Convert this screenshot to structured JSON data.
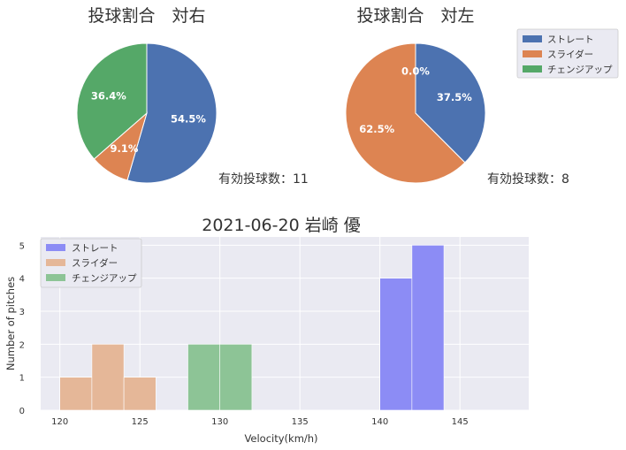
{
  "colors": {
    "straight": "#4c72b0",
    "slider": "#dd8452",
    "change": "#55a868",
    "hist_straight": "#8c8cf5",
    "hist_slider": "#e5b798",
    "hist_change": "#8dc496",
    "axes_bg": "#eaeaf2",
    "grid": "#ffffff",
    "text": "#333333"
  },
  "chart_data": [
    {
      "type": "pie",
      "title": "投球割合　対右",
      "labels": [
        "ストレート",
        "スライダー",
        "チェンジアップ"
      ],
      "values": [
        54.5,
        9.1,
        36.4
      ],
      "value_labels": [
        "54.5%",
        "9.1%",
        "36.4%"
      ],
      "annotation": "有効投球数：11"
    },
    {
      "type": "pie",
      "title": "投球割合　対左",
      "labels": [
        "ストレート",
        "スライダー",
        "チェンジアップ"
      ],
      "values": [
        37.5,
        62.5,
        0.0
      ],
      "value_labels": [
        "37.5%",
        "62.5%",
        "0.0%"
      ],
      "annotation": "有効投球数：8",
      "legend": {
        "placement": "upper-right",
        "entries": [
          "ストレート",
          "スライダー",
          "チェンジアップ"
        ]
      }
    },
    {
      "type": "histogram",
      "title": "2021-06-20 岩崎 優",
      "xlabel": "Velocity(km/h)",
      "ylabel": "Number of pitches",
      "xlim": [
        118.8,
        149.3
      ],
      "ylim": [
        0,
        5.25
      ],
      "xticks": [
        120,
        125,
        130,
        135,
        140,
        145
      ],
      "yticks": [
        0,
        1,
        2,
        3,
        4,
        5
      ],
      "grid": true,
      "legend": {
        "placement": "upper-left",
        "entries": [
          "ストレート",
          "スライダー",
          "チェンジアップ"
        ]
      },
      "series": [
        {
          "name": "ストレート",
          "bins": [
            [
              140,
              142,
              4
            ],
            [
              142,
              144,
              5
            ]
          ]
        },
        {
          "name": "スライダー",
          "bins": [
            [
              120,
              122,
              1
            ],
            [
              122,
              124,
              2
            ],
            [
              124,
              126,
              1
            ]
          ]
        },
        {
          "name": "チェンジアップ",
          "bins": [
            [
              128,
              130,
              2
            ],
            [
              130,
              132,
              2
            ]
          ]
        }
      ]
    }
  ]
}
